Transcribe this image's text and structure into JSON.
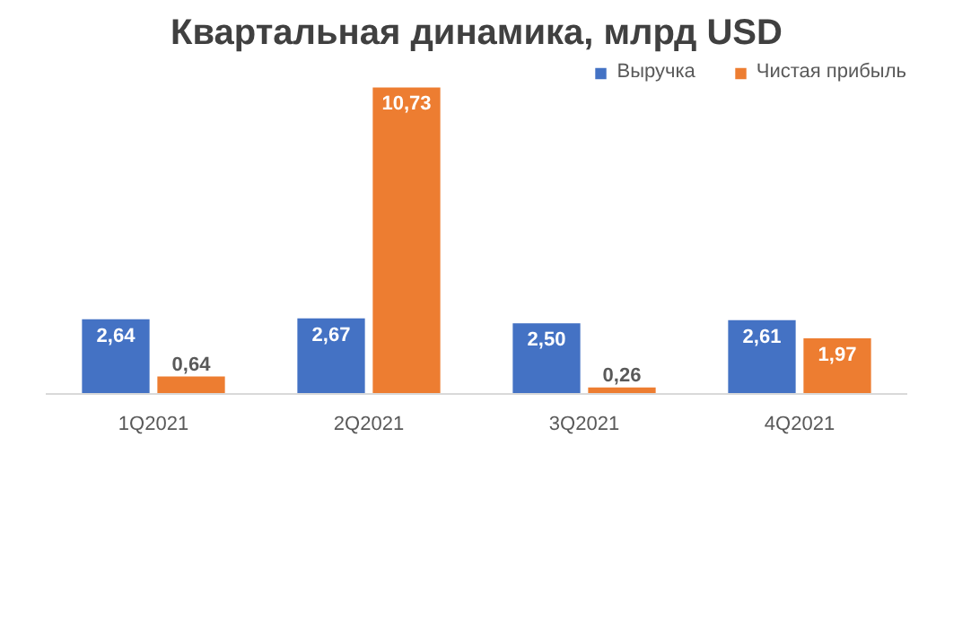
{
  "chart_data": {
    "type": "bar",
    "title": "Квартальная динамика, млрд USD",
    "categories": [
      "1Q2021",
      "2Q2021",
      "3Q2021",
      "4Q2021"
    ],
    "series": [
      {
        "name": "Выручка",
        "color": "#4472c4",
        "values": [
          2.64,
          2.67,
          2.5,
          2.61
        ],
        "value_labels": [
          "2,64",
          "2,67",
          "2,50",
          "2,61"
        ]
      },
      {
        "name": "Чистая прибыль",
        "color": "#ed7d31",
        "values": [
          0.64,
          10.73,
          0.26,
          1.97
        ],
        "value_labels": [
          "0,64",
          "10,73",
          "0,26",
          "1,97"
        ]
      }
    ],
    "legend": "top right"
  }
}
